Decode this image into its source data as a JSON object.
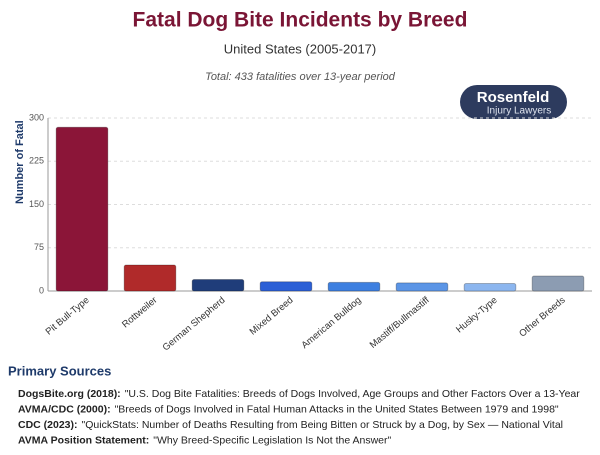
{
  "chart_data": {
    "type": "bar",
    "title": "Fatal Dog Bite Incidents by Breed",
    "subtitle": "United States (2005-2017)",
    "annotation": "Total: 433 fatalities over 13-year period",
    "y_label": "Number of Fatal Incidents",
    "categories": [
      "Pit Bull-Type",
      "Rottweiler",
      "German Shepherd",
      "Mixed Breed",
      "American Bulldog",
      "Mastiff/Bullmastiff",
      "Husky-Type",
      "Other Breeds"
    ],
    "values": [
      284,
      45,
      20,
      16,
      15,
      14,
      13,
      26
    ],
    "colors": [
      "#8b1538",
      "#b02a2a",
      "#1f3d7a",
      "#2b5fd6",
      "#3d7fe0",
      "#5b95e6",
      "#8cb6ef",
      "#8c9cb2"
    ],
    "ylim": [
      0,
      300
    ],
    "yticks": [
      0,
      75,
      150,
      225,
      300
    ],
    "grid": true
  },
  "logo": {
    "name": "Rosenfeld",
    "tagline": "Injury Lawyers"
  },
  "sources": {
    "heading": "Primary Sources",
    "items": [
      {
        "label": "DogsBite.org (2018):",
        "text": "\"U.S. Dog Bite Fatalities: Breeds of Dogs Involved, Age Groups and Other Factors Over a 13-Year"
      },
      {
        "label": "AVMA/CDC (2000):",
        "text": "\"Breeds of Dogs Involved in Fatal Human Attacks in the United States Between 1979 and 1998\""
      },
      {
        "label": "CDC (2023):",
        "text": "\"QuickStats: Number of Deaths Resulting from Being Bitten or Struck by a Dog, by Sex — National Vital"
      },
      {
        "label": "AVMA Position Statement:",
        "text": "\"Why Breed-Specific Legislation Is Not the Answer\""
      }
    ]
  }
}
